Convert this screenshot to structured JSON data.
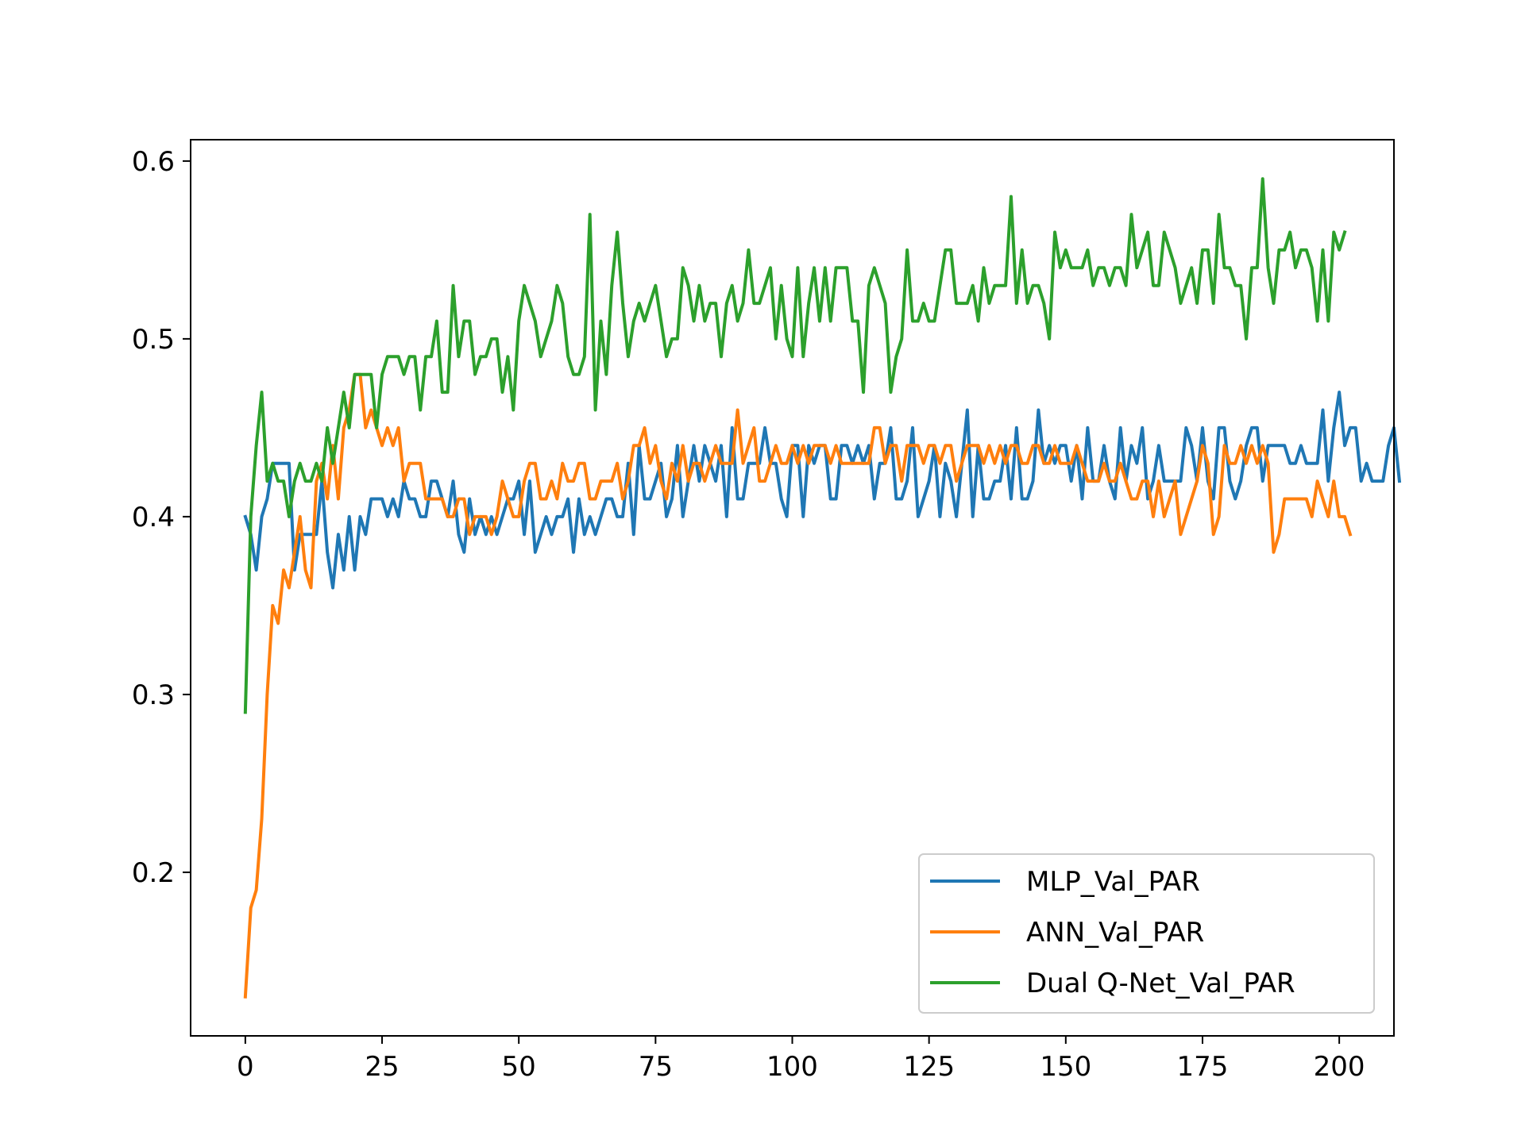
{
  "chart_data": {
    "type": "line",
    "title": "",
    "xlabel": "",
    "ylabel": "",
    "xlim": [
      -10,
      210
    ],
    "ylim": [
      0.108,
      0.612
    ],
    "xticks": [
      0,
      25,
      50,
      75,
      100,
      125,
      150,
      175,
      200
    ],
    "yticks": [
      0.2,
      0.3,
      0.4,
      0.5,
      0.6
    ],
    "xtick_labels": [
      "0",
      "25",
      "50",
      "75",
      "100",
      "125",
      "150",
      "175",
      "200"
    ],
    "ytick_labels": [
      "0.2",
      "0.3",
      "0.4",
      "0.5",
      "0.6"
    ],
    "grid": false,
    "legend_position": "lower-right",
    "x_start": 0,
    "x_step": 1,
    "series": [
      {
        "name": "MLP_Val_PAR",
        "color": "#1f77b4",
        "values": [
          0.4,
          0.39,
          0.37,
          0.4,
          0.41,
          0.43,
          0.43,
          0.43,
          0.43,
          0.37,
          0.39,
          0.39,
          0.39,
          0.39,
          0.42,
          0.38,
          0.36,
          0.39,
          0.37,
          0.4,
          0.37,
          0.4,
          0.39,
          0.41,
          0.41,
          0.41,
          0.4,
          0.41,
          0.4,
          0.42,
          0.41,
          0.41,
          0.4,
          0.4,
          0.42,
          0.42,
          0.41,
          0.4,
          0.42,
          0.39,
          0.38,
          0.41,
          0.39,
          0.4,
          0.39,
          0.4,
          0.39,
          0.4,
          0.41,
          0.41,
          0.42,
          0.39,
          0.42,
          0.38,
          0.39,
          0.4,
          0.39,
          0.4,
          0.4,
          0.41,
          0.38,
          0.41,
          0.39,
          0.4,
          0.39,
          0.4,
          0.41,
          0.41,
          0.4,
          0.4,
          0.43,
          0.39,
          0.44,
          0.41,
          0.41,
          0.42,
          0.43,
          0.4,
          0.41,
          0.44,
          0.4,
          0.42,
          0.44,
          0.42,
          0.44,
          0.43,
          0.42,
          0.44,
          0.4,
          0.45,
          0.41,
          0.41,
          0.43,
          0.43,
          0.43,
          0.45,
          0.43,
          0.43,
          0.41,
          0.4,
          0.44,
          0.44,
          0.4,
          0.44,
          0.43,
          0.44,
          0.44,
          0.41,
          0.41,
          0.44,
          0.44,
          0.43,
          0.44,
          0.43,
          0.44,
          0.41,
          0.43,
          0.43,
          0.45,
          0.41,
          0.41,
          0.42,
          0.45,
          0.4,
          0.41,
          0.42,
          0.44,
          0.4,
          0.43,
          0.42,
          0.4,
          0.43,
          0.46,
          0.4,
          0.44,
          0.41,
          0.41,
          0.42,
          0.42,
          0.44,
          0.41,
          0.45,
          0.41,
          0.41,
          0.42,
          0.46,
          0.43,
          0.44,
          0.43,
          0.44,
          0.44,
          0.42,
          0.44,
          0.41,
          0.45,
          0.42,
          0.42,
          0.44,
          0.42,
          0.41,
          0.45,
          0.42,
          0.44,
          0.43,
          0.45,
          0.41,
          0.42,
          0.44,
          0.42,
          0.42,
          0.42,
          0.42,
          0.45,
          0.44,
          0.42,
          0.45,
          0.42,
          0.41,
          0.45,
          0.45,
          0.42,
          0.41,
          0.42,
          0.44,
          0.45,
          0.45,
          0.42,
          0.44,
          0.44,
          0.44,
          0.44,
          0.43,
          0.43,
          0.44,
          0.43,
          0.43,
          0.43,
          0.46,
          0.42,
          0.45,
          0.47,
          0.44,
          0.45,
          0.45,
          0.42,
          0.43,
          0.42,
          0.42,
          0.42,
          0.44,
          0.45,
          0.42
        ]
      },
      {
        "name": "ANN_Val_PAR",
        "color": "#ff7f0e",
        "values": [
          0.13,
          0.18,
          0.19,
          0.23,
          0.3,
          0.35,
          0.34,
          0.37,
          0.36,
          0.38,
          0.4,
          0.37,
          0.36,
          0.42,
          0.43,
          0.41,
          0.44,
          0.41,
          0.45,
          0.46,
          0.48,
          0.48,
          0.45,
          0.46,
          0.45,
          0.44,
          0.45,
          0.44,
          0.45,
          0.42,
          0.43,
          0.43,
          0.43,
          0.41,
          0.41,
          0.41,
          0.41,
          0.4,
          0.4,
          0.41,
          0.41,
          0.39,
          0.4,
          0.4,
          0.4,
          0.39,
          0.4,
          0.42,
          0.41,
          0.4,
          0.4,
          0.42,
          0.43,
          0.43,
          0.41,
          0.41,
          0.42,
          0.41,
          0.43,
          0.42,
          0.42,
          0.43,
          0.43,
          0.41,
          0.41,
          0.42,
          0.42,
          0.42,
          0.43,
          0.41,
          0.42,
          0.44,
          0.44,
          0.45,
          0.43,
          0.44,
          0.42,
          0.41,
          0.43,
          0.42,
          0.44,
          0.42,
          0.43,
          0.43,
          0.42,
          0.43,
          0.44,
          0.43,
          0.43,
          0.43,
          0.46,
          0.43,
          0.44,
          0.45,
          0.42,
          0.42,
          0.43,
          0.44,
          0.43,
          0.43,
          0.44,
          0.43,
          0.44,
          0.43,
          0.44,
          0.44,
          0.44,
          0.43,
          0.44,
          0.43,
          0.43,
          0.43,
          0.43,
          0.43,
          0.43,
          0.45,
          0.45,
          0.43,
          0.44,
          0.44,
          0.42,
          0.44,
          0.44,
          0.44,
          0.43,
          0.44,
          0.44,
          0.43,
          0.44,
          0.44,
          0.42,
          0.43,
          0.44,
          0.44,
          0.44,
          0.43,
          0.44,
          0.43,
          0.44,
          0.43,
          0.44,
          0.44,
          0.43,
          0.43,
          0.44,
          0.44,
          0.43,
          0.43,
          0.44,
          0.43,
          0.43,
          0.43,
          0.44,
          0.43,
          0.42,
          0.42,
          0.42,
          0.43,
          0.42,
          0.42,
          0.43,
          0.42,
          0.41,
          0.41,
          0.42,
          0.42,
          0.4,
          0.42,
          0.4,
          0.41,
          0.42,
          0.39,
          0.4,
          0.41,
          0.42,
          0.44,
          0.43,
          0.39,
          0.4,
          0.44,
          0.43,
          0.43,
          0.44,
          0.43,
          0.44,
          0.43,
          0.44,
          0.43,
          0.38,
          0.39,
          0.41,
          0.41,
          0.41,
          0.41,
          0.41,
          0.4,
          0.42,
          0.41,
          0.4,
          0.42,
          0.4,
          0.4,
          0.39
        ]
      },
      {
        "name": "Dual Q-Net_Val_PAR",
        "color": "#2ca02c",
        "values": [
          0.29,
          0.4,
          0.44,
          0.47,
          0.42,
          0.43,
          0.42,
          0.42,
          0.4,
          0.42,
          0.43,
          0.42,
          0.42,
          0.43,
          0.42,
          0.45,
          0.43,
          0.45,
          0.47,
          0.45,
          0.48,
          0.48,
          0.48,
          0.48,
          0.45,
          0.48,
          0.49,
          0.49,
          0.49,
          0.48,
          0.49,
          0.49,
          0.46,
          0.49,
          0.49,
          0.51,
          0.47,
          0.47,
          0.53,
          0.49,
          0.51,
          0.51,
          0.48,
          0.49,
          0.49,
          0.5,
          0.5,
          0.47,
          0.49,
          0.46,
          0.51,
          0.53,
          0.52,
          0.51,
          0.49,
          0.5,
          0.51,
          0.53,
          0.52,
          0.49,
          0.48,
          0.48,
          0.49,
          0.57,
          0.46,
          0.51,
          0.48,
          0.53,
          0.56,
          0.52,
          0.49,
          0.51,
          0.52,
          0.51,
          0.52,
          0.53,
          0.51,
          0.49,
          0.5,
          0.5,
          0.54,
          0.53,
          0.51,
          0.53,
          0.51,
          0.52,
          0.52,
          0.49,
          0.52,
          0.53,
          0.51,
          0.52,
          0.55,
          0.52,
          0.52,
          0.53,
          0.54,
          0.5,
          0.53,
          0.5,
          0.49,
          0.54,
          0.49,
          0.52,
          0.54,
          0.51,
          0.54,
          0.51,
          0.54,
          0.54,
          0.54,
          0.51,
          0.51,
          0.47,
          0.53,
          0.54,
          0.53,
          0.52,
          0.47,
          0.49,
          0.5,
          0.55,
          0.51,
          0.51,
          0.52,
          0.51,
          0.51,
          0.53,
          0.55,
          0.55,
          0.52,
          0.52,
          0.52,
          0.53,
          0.51,
          0.54,
          0.52,
          0.53,
          0.53,
          0.53,
          0.58,
          0.52,
          0.55,
          0.52,
          0.53,
          0.53,
          0.52,
          0.5,
          0.56,
          0.54,
          0.55,
          0.54,
          0.54,
          0.54,
          0.55,
          0.53,
          0.54,
          0.54,
          0.53,
          0.54,
          0.54,
          0.53,
          0.57,
          0.54,
          0.55,
          0.56,
          0.53,
          0.53,
          0.56,
          0.55,
          0.54,
          0.52,
          0.53,
          0.54,
          0.52,
          0.55,
          0.55,
          0.52,
          0.57,
          0.54,
          0.54,
          0.53,
          0.53,
          0.5,
          0.54,
          0.54,
          0.59,
          0.54,
          0.52,
          0.55,
          0.55,
          0.56,
          0.54,
          0.55,
          0.55,
          0.54,
          0.51,
          0.55,
          0.51,
          0.56,
          0.55,
          0.56
        ]
      }
    ]
  }
}
